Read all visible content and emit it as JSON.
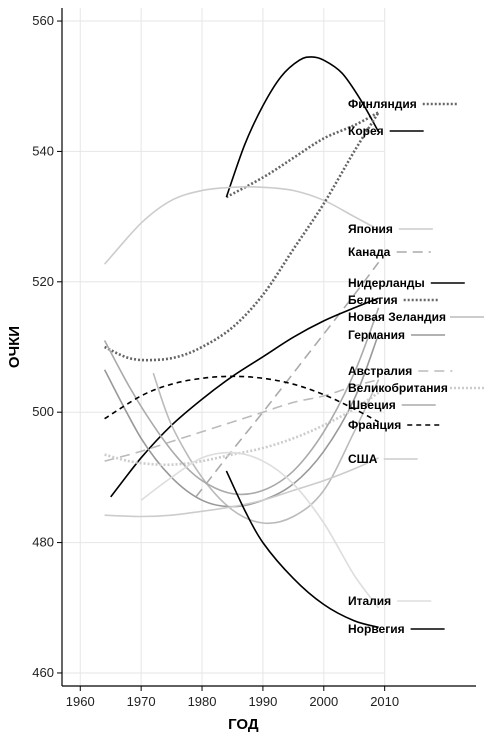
{
  "chart_data": {
    "type": "line",
    "xlabel": "ГОД",
    "ylabel": "ОЧКИ",
    "xlim": [
      1957,
      2025
    ],
    "ylim": [
      458,
      562
    ],
    "xticks": [
      1960,
      1970,
      1980,
      1990,
      2000,
      2010
    ],
    "yticks": [
      460,
      480,
      500,
      520,
      540,
      560
    ],
    "grid": true,
    "legend": "right-side inline labels",
    "series": [
      {
        "name": "Финляндия",
        "color": "#666666",
        "dash": "2,2",
        "width": 2.6,
        "points": [
          [
            1984,
            533
          ],
          [
            1990,
            536
          ],
          [
            1995,
            539
          ],
          [
            2000,
            542
          ],
          [
            2005,
            544
          ],
          [
            2009,
            546
          ]
        ]
      },
      {
        "name": "Корея",
        "color": "#000000",
        "dash": "",
        "width": 1.6,
        "points": [
          [
            1984,
            533
          ],
          [
            1987,
            541
          ],
          [
            1990,
            547
          ],
          [
            1993,
            551.5
          ],
          [
            1996,
            554
          ],
          [
            1998,
            554.5
          ],
          [
            2000,
            554
          ],
          [
            2003,
            552
          ],
          [
            2006,
            548
          ],
          [
            2009,
            543
          ]
        ]
      },
      {
        "name": "Япония",
        "color": "#cccccc",
        "dash": "",
        "width": 1.6,
        "points": [
          [
            1964,
            522.7
          ],
          [
            1970,
            529
          ],
          [
            1975,
            532.5
          ],
          [
            1980,
            534
          ],
          [
            1985,
            534.5
          ],
          [
            1990,
            534.5
          ],
          [
            1995,
            534
          ],
          [
            2000,
            532.5
          ],
          [
            2005,
            530
          ],
          [
            2009,
            528
          ]
        ]
      },
      {
        "name": "Канада",
        "color": "#aaaaaa",
        "dash": "10,6",
        "width": 1.6,
        "points": [
          [
            1979,
            487
          ],
          [
            1984,
            493
          ],
          [
            1990,
            500
          ],
          [
            1995,
            506
          ],
          [
            2000,
            512
          ],
          [
            2005,
            518
          ],
          [
            2009,
            523
          ]
        ]
      },
      {
        "name": "Нидерланды",
        "color": "#000000",
        "dash": "",
        "width": 1.6,
        "points": [
          [
            1965,
            487
          ],
          [
            1970,
            493
          ],
          [
            1975,
            498
          ],
          [
            1980,
            502
          ],
          [
            1985,
            505.5
          ],
          [
            1990,
            508.5
          ],
          [
            1995,
            511.5
          ],
          [
            2000,
            514
          ],
          [
            2005,
            516
          ],
          [
            2009,
            517.5
          ]
        ]
      },
      {
        "name": "Бельгия",
        "color": "#666666",
        "dash": "2,2",
        "width": 2.6,
        "points": [
          [
            1964,
            510
          ],
          [
            1968,
            508.3
          ],
          [
            1972,
            508
          ],
          [
            1976,
            508.5
          ],
          [
            1980,
            510
          ],
          [
            1985,
            513
          ],
          [
            1990,
            518
          ],
          [
            1995,
            525
          ],
          [
            2000,
            532
          ],
          [
            2005,
            540
          ],
          [
            2009,
            546
          ]
        ]
      },
      {
        "name": "Новая Зеландия",
        "color": "#bbbbbb",
        "dash": "",
        "width": 1.6,
        "points": [
          [
            1972,
            506
          ],
          [
            1975,
            498
          ],
          [
            1980,
            490
          ],
          [
            1985,
            485
          ],
          [
            1990,
            483
          ],
          [
            1995,
            484
          ],
          [
            2000,
            488
          ],
          [
            2005,
            497
          ],
          [
            2009,
            505
          ]
        ]
      },
      {
        "name": "Германия",
        "color": "#999999",
        "dash": "",
        "width": 1.6,
        "points": [
          [
            1964,
            506.5
          ],
          [
            1970,
            496
          ],
          [
            1975,
            490
          ],
          [
            1980,
            486.5
          ],
          [
            1985,
            485.5
          ],
          [
            1990,
            486.5
          ],
          [
            1995,
            489
          ],
          [
            2000,
            494
          ],
          [
            2005,
            502
          ],
          [
            2009,
            512
          ]
        ]
      },
      {
        "name": "Австралия",
        "color": "#bbbbbb",
        "dash": "10,6",
        "width": 1.6,
        "points": [
          [
            1964,
            492.5
          ],
          [
            1970,
            494
          ],
          [
            1975,
            495.5
          ],
          [
            1980,
            497
          ],
          [
            1985,
            498.5
          ],
          [
            1990,
            500
          ],
          [
            1995,
            501.5
          ],
          [
            2000,
            502.5
          ],
          [
            2005,
            504
          ],
          [
            2009,
            505
          ]
        ]
      },
      {
        "name": "Великобритания",
        "color": "#cccccc",
        "dash": "2,2",
        "width": 2.6,
        "points": [
          [
            1964,
            493.5
          ],
          [
            1968,
            492.5
          ],
          [
            1972,
            492
          ],
          [
            1976,
            492
          ],
          [
            1980,
            492.5
          ],
          [
            1985,
            493.5
          ],
          [
            1990,
            494.5
          ],
          [
            1995,
            496
          ],
          [
            2000,
            498
          ],
          [
            2005,
            500.5
          ],
          [
            2009,
            503
          ]
        ]
      },
      {
        "name": "Швеция",
        "color": "#aaaaaa",
        "dash": "",
        "width": 1.6,
        "points": [
          [
            1964,
            511
          ],
          [
            1968,
            504
          ],
          [
            1972,
            498
          ],
          [
            1976,
            493
          ],
          [
            1980,
            489.5
          ],
          [
            1985,
            487.5
          ],
          [
            1990,
            488
          ],
          [
            1995,
            491
          ],
          [
            2000,
            497
          ],
          [
            2005,
            506
          ],
          [
            2009,
            516
          ]
        ]
      },
      {
        "name": "Франция",
        "color": "#000000",
        "dash": "5,4",
        "width": 1.6,
        "points": [
          [
            1964,
            499
          ],
          [
            1970,
            502.5
          ],
          [
            1975,
            504.3
          ],
          [
            1980,
            505.2
          ],
          [
            1985,
            505.5
          ],
          [
            1990,
            505.2
          ],
          [
            1995,
            504.3
          ],
          [
            2000,
            502.7
          ],
          [
            2005,
            500.5
          ],
          [
            2009,
            498.5
          ]
        ]
      },
      {
        "name": "США",
        "color": "#cccccc",
        "dash": "",
        "width": 1.6,
        "points": [
          [
            1964,
            484.2
          ],
          [
            1970,
            484
          ],
          [
            1975,
            484.2
          ],
          [
            1980,
            484.8
          ],
          [
            1985,
            485.5
          ],
          [
            1990,
            486.5
          ],
          [
            1995,
            488
          ],
          [
            2000,
            489.5
          ],
          [
            2005,
            491.3
          ],
          [
            2009,
            493
          ]
        ]
      },
      {
        "name": "Италия",
        "color": "#dddddd",
        "dash": "",
        "width": 1.6,
        "points": [
          [
            1970,
            486.5
          ],
          [
            1975,
            490
          ],
          [
            1980,
            493
          ],
          [
            1985,
            493.8
          ],
          [
            1990,
            492.5
          ],
          [
            1995,
            489
          ],
          [
            2000,
            483
          ],
          [
            2005,
            475
          ],
          [
            2009,
            470
          ]
        ]
      },
      {
        "name": "Норвегия",
        "color": "#000000",
        "dash": "",
        "width": 1.6,
        "points": [
          [
            1984,
            491
          ],
          [
            1987,
            485
          ],
          [
            1990,
            480
          ],
          [
            1995,
            474.5
          ],
          [
            2000,
            470.5
          ],
          [
            2005,
            468
          ],
          [
            2009,
            467
          ]
        ]
      }
    ]
  }
}
